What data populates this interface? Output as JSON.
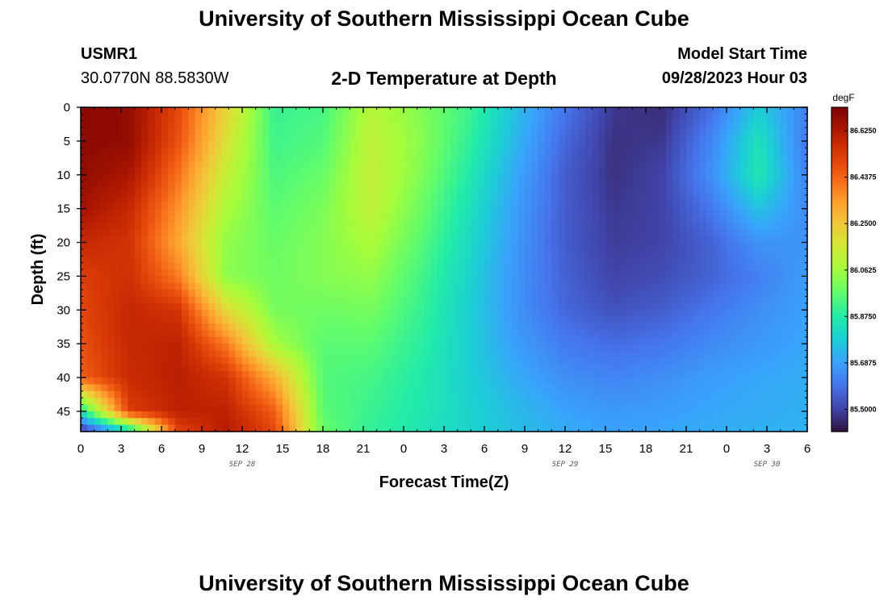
{
  "header": {
    "title": "University of Southern Mississippi Ocean Cube",
    "station_id": "USMR1",
    "coords": "30.0770N  88.5830W",
    "plot_title": "2-D Temperature at Depth",
    "model_start_label": "Model Start Time",
    "model_start_value": "09/28/2023 Hour 03"
  },
  "footer": {
    "title": "University of Southern Mississippi Ocean Cube"
  },
  "chart_data": {
    "type": "heatmap",
    "title": "2-D Temperature at Depth",
    "xlabel": "Forecast Time(Z)",
    "ylabel": "Depth (ft)",
    "units": "degF",
    "x_hours": [
      0,
      3,
      6,
      9,
      12,
      15,
      18,
      21,
      24,
      27,
      30,
      33,
      36,
      39,
      42,
      45,
      48,
      51,
      54
    ],
    "xtick_labels": [
      "0",
      "3",
      "6",
      "9",
      "12",
      "15",
      "18",
      "21",
      "0",
      "3",
      "6",
      "9",
      "12",
      "15",
      "18",
      "21",
      "0",
      "3",
      "6"
    ],
    "date_labels": [
      {
        "hour": 12,
        "label": "SEP 28"
      },
      {
        "hour": 36,
        "label": "SEP 29"
      },
      {
        "hour": 51,
        "label": "SEP 30"
      }
    ],
    "yticks": [
      0,
      5,
      10,
      15,
      20,
      25,
      30,
      35,
      40,
      45
    ],
    "ylim": [
      0,
      48
    ],
    "xlim": [
      0,
      54
    ],
    "colorbar": {
      "ticks": [
        86.625,
        86.4375,
        86.25,
        86.0625,
        85.875,
        85.6875,
        85.5
      ],
      "tick_labels": [
        "86.6250",
        "86.4375",
        "86.2500",
        "86.0625",
        "85.8750",
        "85.6875",
        "85.5000"
      ],
      "range": [
        85.41,
        86.72
      ],
      "colors": [
        "#30123b",
        "#4145ab",
        "#4675ed",
        "#39a2fc",
        "#1bcfd4",
        "#24eca6",
        "#61fc6c",
        "#a4fc3b",
        "#d1e834",
        "#f3c63a",
        "#fe9b2d",
        "#f36315",
        "#d93806",
        "#b11901",
        "#7a0402"
      ]
    },
    "depths": [
      0,
      5,
      10,
      15,
      20,
      25,
      30,
      35,
      40,
      45,
      48
    ],
    "temperature": [
      [
        86.69,
        86.68,
        86.5,
        86.22,
        85.91,
        85.93,
        86.1,
        86.02,
        85.92,
        85.75,
        85.6,
        85.48,
        85.46,
        85.58,
        85.78,
        85.62
      ],
      [
        86.69,
        86.68,
        86.48,
        86.18,
        85.92,
        85.95,
        86.12,
        86.03,
        85.9,
        85.73,
        85.57,
        85.47,
        85.48,
        85.63,
        85.84,
        85.6
      ],
      [
        86.68,
        86.64,
        86.42,
        86.13,
        85.94,
        85.98,
        86.13,
        86.02,
        85.87,
        85.7,
        85.55,
        85.47,
        85.5,
        85.65,
        85.86,
        85.62
      ],
      [
        86.65,
        86.58,
        86.36,
        86.08,
        85.96,
        86.01,
        86.12,
        85.99,
        85.84,
        85.68,
        85.55,
        85.48,
        85.5,
        85.6,
        85.76,
        85.64
      ],
      [
        86.58,
        86.55,
        86.32,
        86.04,
        85.98,
        86.02,
        86.08,
        85.96,
        85.82,
        85.67,
        85.55,
        85.49,
        85.5,
        85.56,
        85.66,
        85.66
      ],
      [
        86.52,
        86.56,
        86.4,
        86.03,
        85.99,
        86.02,
        86.04,
        85.93,
        85.8,
        85.66,
        85.56,
        85.5,
        85.52,
        85.56,
        85.62,
        85.68
      ],
      [
        86.5,
        86.58,
        86.55,
        86.2,
        86.0,
        85.99,
        86.0,
        85.91,
        85.79,
        85.66,
        85.57,
        85.53,
        85.55,
        85.6,
        85.65,
        85.69
      ],
      [
        86.48,
        86.58,
        86.6,
        86.4,
        86.07,
        85.96,
        85.96,
        85.89,
        85.79,
        85.68,
        85.61,
        85.58,
        85.6,
        85.64,
        85.67,
        85.7
      ],
      [
        86.45,
        86.57,
        86.61,
        86.55,
        86.3,
        85.95,
        85.93,
        85.87,
        85.79,
        85.71,
        85.65,
        85.63,
        85.65,
        85.68,
        85.7,
        85.71
      ],
      [
        85.85,
        86.52,
        86.6,
        86.6,
        86.45,
        85.96,
        85.91,
        85.86,
        85.8,
        85.74,
        85.69,
        85.67,
        85.68,
        85.7,
        85.71,
        85.72
      ],
      [
        85.45,
        85.8,
        86.5,
        86.62,
        86.5,
        85.98,
        85.9,
        85.85,
        85.8,
        85.75,
        85.71,
        85.69,
        85.7,
        85.71,
        85.72,
        85.72
      ]
    ]
  }
}
